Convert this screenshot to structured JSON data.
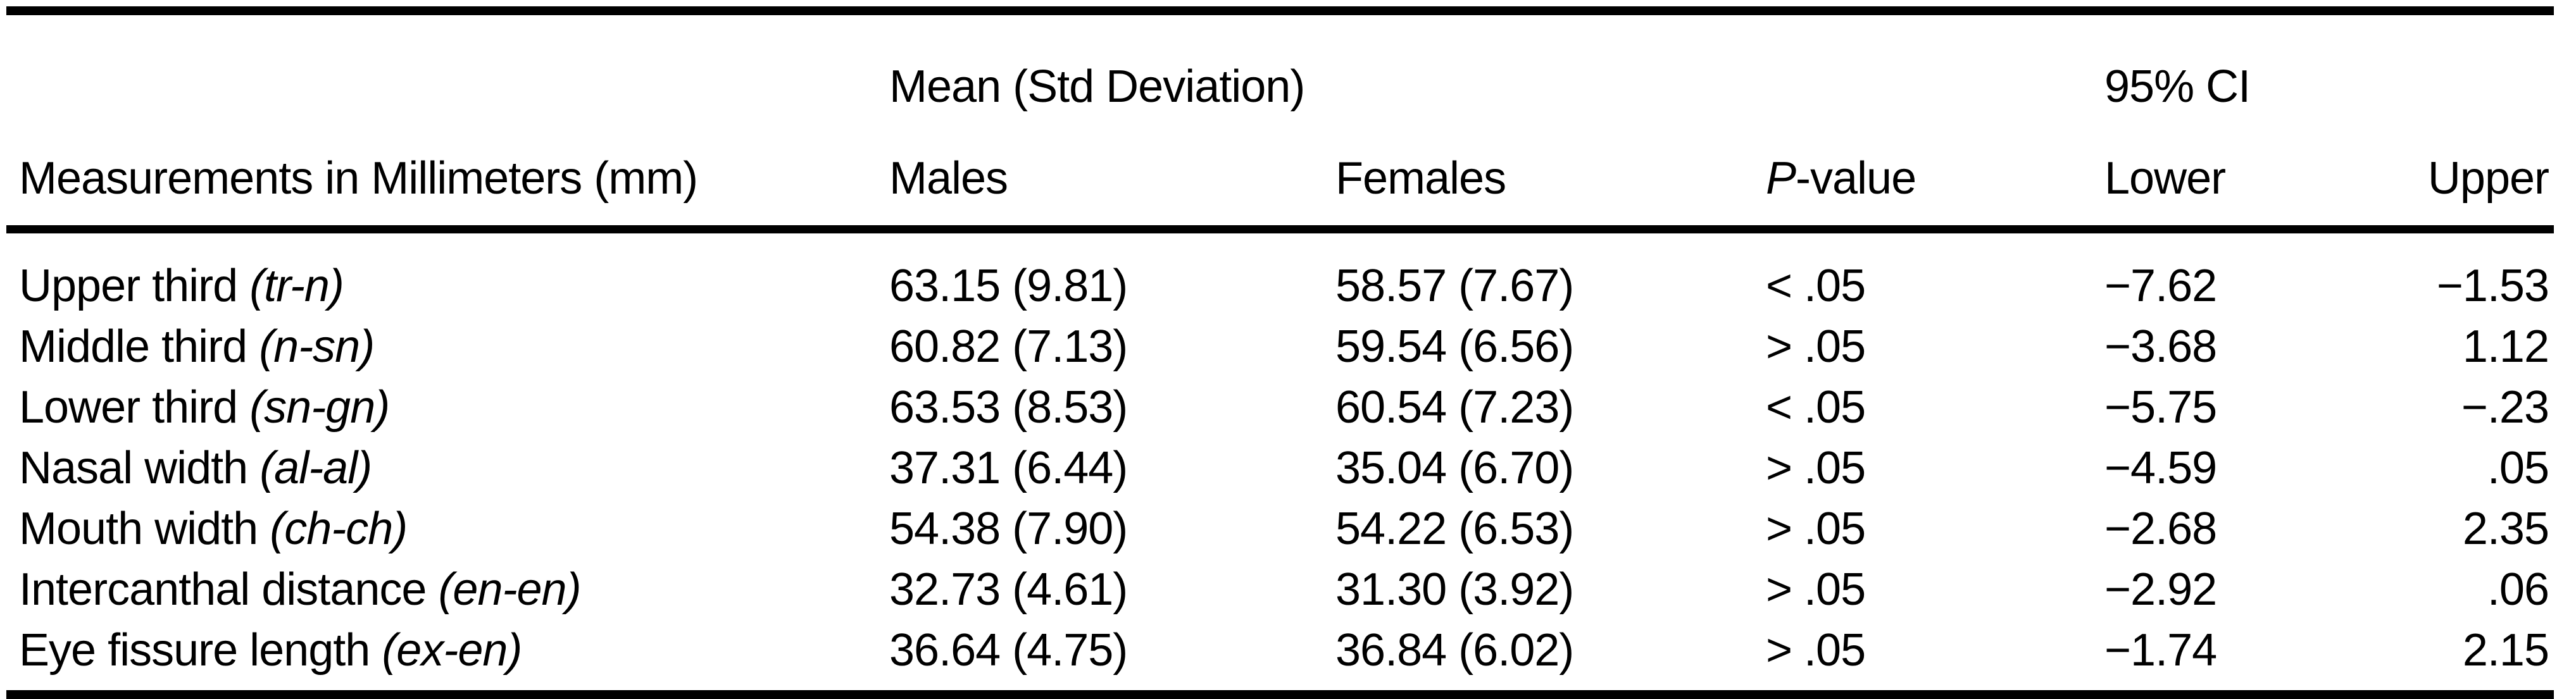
{
  "colors": {
    "text": "#000000",
    "rules": "#000000",
    "background": "#ffffff"
  },
  "table": {
    "row_header_column": {
      "title": "Measurements in Millimeters (mm)"
    },
    "spanners": [
      {
        "label": "Mean (Std Deviation)"
      },
      {
        "label": "95% CI"
      }
    ],
    "columns": {
      "males": "Males",
      "females": "Females",
      "p_value_italic": "P",
      "p_value_rest": "-value",
      "lower": "Lower",
      "upper": "Upper"
    },
    "rows": [
      {
        "label": "Upper third",
        "abbr": "(tr-n)",
        "males": "63.15 (9.81)",
        "females": "58.57 (7.67)",
        "p_value": "< .05",
        "ci_lower": "−7.62",
        "ci_upper": "−1.53"
      },
      {
        "label": "Middle third",
        "abbr": "(n-sn)",
        "males": "60.82 (7.13)",
        "females": "59.54 (6.56)",
        "p_value": "> .05",
        "ci_lower": "−3.68",
        "ci_upper": "1.12"
      },
      {
        "label": "Lower third",
        "abbr": "(sn-gn)",
        "males": "63.53 (8.53)",
        "females": "60.54 (7.23)",
        "p_value": "< .05",
        "ci_lower": "−5.75",
        "ci_upper": "−.23"
      },
      {
        "label": "Nasal width",
        "abbr": "(al-al)",
        "males": "37.31 (6.44)",
        "females": "35.04 (6.70)",
        "p_value": "> .05",
        "ci_lower": "−4.59",
        "ci_upper": ".05"
      },
      {
        "label": "Mouth width",
        "abbr": "(ch-ch)",
        "males": "54.38 (7.90)",
        "females": "54.22 (6.53)",
        "p_value": "> .05",
        "ci_lower": "−2.68",
        "ci_upper": "2.35"
      },
      {
        "label": "Intercanthal distance",
        "abbr": "(en-en)",
        "males": "32.73 (4.61)",
        "females": "31.30 (3.92)",
        "p_value": "> .05",
        "ci_lower": "−2.92",
        "ci_upper": ".06"
      },
      {
        "label": "Eye fissure length",
        "abbr": "(ex-en)",
        "males": "36.64 (4.75)",
        "females": "36.84 (6.02)",
        "p_value": "> .05",
        "ci_lower": "−1.74",
        "ci_upper": "2.15"
      }
    ]
  }
}
